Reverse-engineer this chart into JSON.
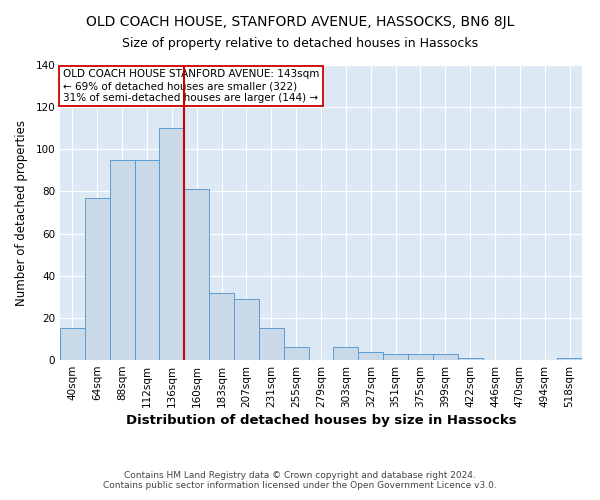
{
  "title": "OLD COACH HOUSE, STANFORD AVENUE, HASSOCKS, BN6 8JL",
  "subtitle": "Size of property relative to detached houses in Hassocks",
  "xlabel": "Distribution of detached houses by size in Hassocks",
  "ylabel": "Number of detached properties",
  "categories": [
    "40sqm",
    "64sqm",
    "88sqm",
    "112sqm",
    "136sqm",
    "160sqm",
    "183sqm",
    "207sqm",
    "231sqm",
    "255sqm",
    "279sqm",
    "303sqm",
    "327sqm",
    "351sqm",
    "375sqm",
    "399sqm",
    "422sqm",
    "446sqm",
    "470sqm",
    "494sqm",
    "518sqm"
  ],
  "values": [
    15,
    77,
    95,
    95,
    110,
    81,
    32,
    29,
    15,
    6,
    0,
    6,
    4,
    3,
    3,
    3,
    1,
    0,
    0,
    0,
    1
  ],
  "bar_color": "#c9d9e8",
  "bar_edge_color": "#5b9bd5",
  "vline_x": 4.5,
  "vline_color": "#cc0000",
  "annotation_text": "OLD COACH HOUSE STANFORD AVENUE: 143sqm\n← 69% of detached houses are smaller (322)\n31% of semi-detached houses are larger (144) →",
  "annotation_box_color": "white",
  "annotation_box_edge": "#cc0000",
  "ylim": [
    0,
    140
  ],
  "yticks": [
    0,
    20,
    40,
    60,
    80,
    100,
    120,
    140
  ],
  "footnote": "Contains HM Land Registry data © Crown copyright and database right 2024.\nContains public sector information licensed under the Open Government Licence v3.0.",
  "fig_bg_color": "#ffffff",
  "plot_bg_color": "#dce9f5",
  "title_fontsize": 10,
  "subtitle_fontsize": 9,
  "xlabel_fontsize": 9.5,
  "ylabel_fontsize": 8.5,
  "tick_fontsize": 7.5,
  "footnote_fontsize": 6.5,
  "grid_color": "#ffffff"
}
